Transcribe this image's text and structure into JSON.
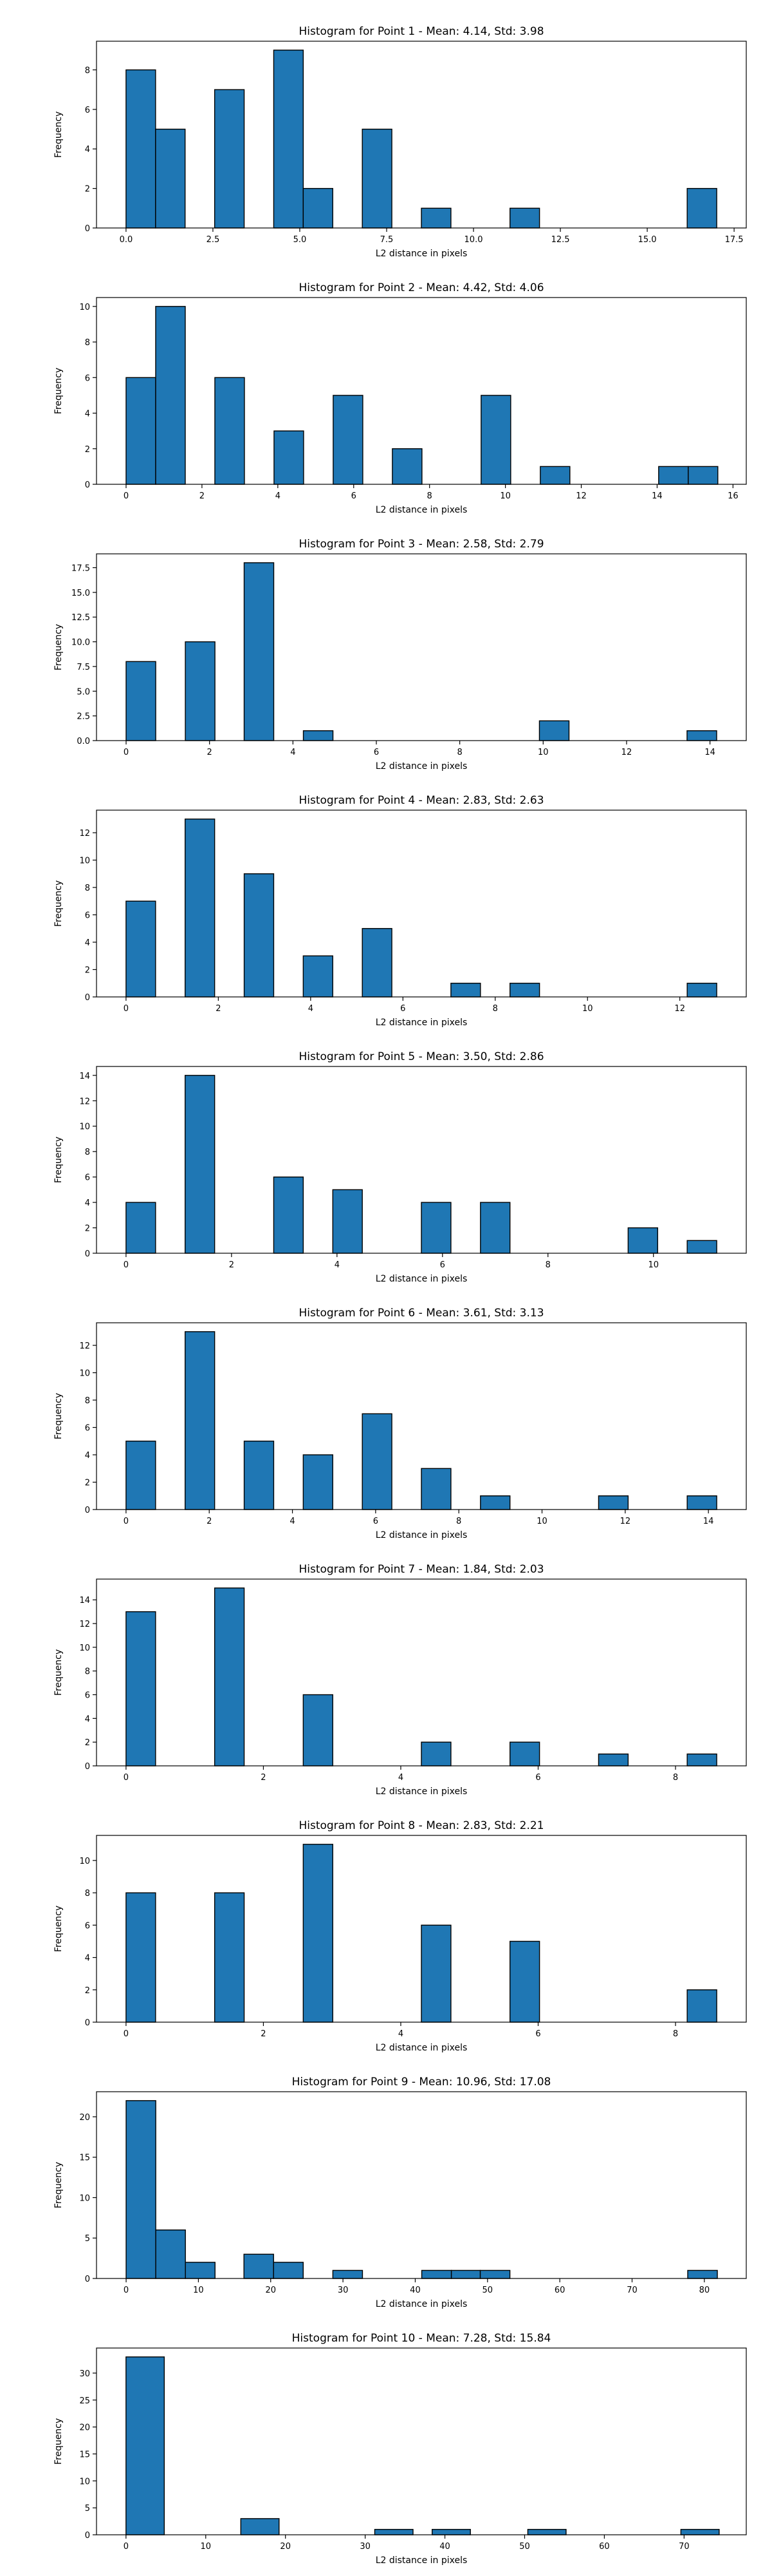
{
  "figure": {
    "bar_color": "#1f77b4",
    "edge_color": "#000000"
  },
  "chart_data": [
    {
      "type": "bar",
      "title": "Histogram for Point 1 - Mean: 4.14, Std: 3.98",
      "xlabel": "L2 distance in pixels",
      "ylabel": "Frequency",
      "xlim": [
        -0.85,
        17.85
      ],
      "ylim": [
        0,
        9.45
      ],
      "xticks": [
        0.0,
        2.5,
        5.0,
        7.5,
        10.0,
        12.5,
        15.0,
        17.5
      ],
      "xtick_labels": [
        "0.0",
        "2.5",
        "5.0",
        "7.5",
        "10.0",
        "12.5",
        "15.0",
        "17.5"
      ],
      "yticks": [
        0,
        2,
        4,
        6,
        8
      ],
      "ytick_labels": [
        "0",
        "2",
        "4",
        "6",
        "8"
      ],
      "bins": [
        {
          "x0": 0.0,
          "x1": 0.85,
          "count": 8
        },
        {
          "x0": 0.85,
          "x1": 1.7,
          "count": 5
        },
        {
          "x0": 2.55,
          "x1": 3.4,
          "count": 7
        },
        {
          "x0": 4.25,
          "x1": 5.1,
          "count": 9
        },
        {
          "x0": 5.1,
          "x1": 5.95,
          "count": 2
        },
        {
          "x0": 6.8,
          "x1": 7.65,
          "count": 5
        },
        {
          "x0": 8.5,
          "x1": 9.35,
          "count": 1
        },
        {
          "x0": 11.05,
          "x1": 11.9,
          "count": 1
        },
        {
          "x0": 16.15,
          "x1": 17.0,
          "count": 2
        }
      ]
    },
    {
      "type": "bar",
      "title": "Histogram for Point 2 - Mean: 4.42, Std: 4.06",
      "xlabel": "L2 distance in pixels",
      "ylabel": "Frequency",
      "xlim": [
        -0.78,
        16.35
      ],
      "ylim": [
        0,
        10.5
      ],
      "xticks": [
        0,
        2,
        4,
        6,
        8,
        10,
        12,
        14,
        16
      ],
      "xtick_labels": [
        "0",
        "2",
        "4",
        "6",
        "8",
        "10",
        "12",
        "14",
        "16"
      ],
      "yticks": [
        0,
        2,
        4,
        6,
        8,
        10
      ],
      "ytick_labels": [
        "0",
        "2",
        "4",
        "6",
        "8",
        "10"
      ],
      "bins": [
        {
          "x0": 0.0,
          "x1": 0.78,
          "count": 6
        },
        {
          "x0": 0.78,
          "x1": 1.56,
          "count": 10
        },
        {
          "x0": 2.34,
          "x1": 3.12,
          "count": 6
        },
        {
          "x0": 3.9,
          "x1": 4.68,
          "count": 3
        },
        {
          "x0": 5.46,
          "x1": 6.24,
          "count": 5
        },
        {
          "x0": 7.02,
          "x1": 7.8,
          "count": 2
        },
        {
          "x0": 9.36,
          "x1": 10.14,
          "count": 5
        },
        {
          "x0": 10.92,
          "x1": 11.7,
          "count": 1
        },
        {
          "x0": 14.04,
          "x1": 14.82,
          "count": 1
        },
        {
          "x0": 14.82,
          "x1": 15.6,
          "count": 1
        }
      ]
    },
    {
      "type": "bar",
      "title": "Histogram for Point 3 - Mean: 2.58, Std: 2.79",
      "xlabel": "L2 distance in pixels",
      "ylabel": "Frequency",
      "xlim": [
        -0.71,
        14.87
      ],
      "ylim": [
        0,
        18.9
      ],
      "xticks": [
        0,
        2,
        4,
        6,
        8,
        10,
        12,
        14
      ],
      "xtick_labels": [
        "0",
        "2",
        "4",
        "6",
        "8",
        "10",
        "12",
        "14"
      ],
      "yticks": [
        0.0,
        2.5,
        5.0,
        7.5,
        10.0,
        12.5,
        15.0,
        17.5
      ],
      "ytick_labels": [
        "0.0",
        "2.5",
        "5.0",
        "7.5",
        "10.0",
        "12.5",
        "15.0",
        "17.5"
      ],
      "bins": [
        {
          "x0": 0.0,
          "x1": 0.71,
          "count": 8
        },
        {
          "x0": 1.42,
          "x1": 2.13,
          "count": 10
        },
        {
          "x0": 2.83,
          "x1": 3.54,
          "count": 18
        },
        {
          "x0": 4.25,
          "x1": 4.96,
          "count": 1
        },
        {
          "x0": 9.91,
          "x1": 10.62,
          "count": 2
        },
        {
          "x0": 13.45,
          "x1": 14.16,
          "count": 1
        }
      ]
    },
    {
      "type": "bar",
      "title": "Histogram for Point 4 - Mean: 2.83, Std: 2.63",
      "xlabel": "L2 distance in pixels",
      "ylabel": "Frequency",
      "xlim": [
        -0.64,
        13.44
      ],
      "ylim": [
        0,
        13.65
      ],
      "xticks": [
        0,
        2,
        4,
        6,
        8,
        10,
        12
      ],
      "xtick_labels": [
        "0",
        "2",
        "4",
        "6",
        "8",
        "10",
        "12"
      ],
      "yticks": [
        0,
        2,
        4,
        6,
        8,
        10,
        12
      ],
      "ytick_labels": [
        "0",
        "2",
        "4",
        "6",
        "8",
        "10",
        "12"
      ],
      "bins": [
        {
          "x0": 0.0,
          "x1": 0.64,
          "count": 7
        },
        {
          "x0": 1.28,
          "x1": 1.92,
          "count": 13
        },
        {
          "x0": 2.56,
          "x1": 3.2,
          "count": 9
        },
        {
          "x0": 3.84,
          "x1": 4.48,
          "count": 3
        },
        {
          "x0": 5.12,
          "x1": 5.76,
          "count": 5
        },
        {
          "x0": 7.04,
          "x1": 7.68,
          "count": 1
        },
        {
          "x0": 8.32,
          "x1": 8.96,
          "count": 1
        },
        {
          "x0": 12.16,
          "x1": 12.8,
          "count": 1
        }
      ]
    },
    {
      "type": "bar",
      "title": "Histogram for Point 5 - Mean: 3.50, Std: 2.86",
      "xlabel": "L2 distance in pixels",
      "ylabel": "Frequency",
      "xlim": [
        -0.56,
        11.76
      ],
      "ylim": [
        0,
        14.7
      ],
      "xticks": [
        0,
        2,
        4,
        6,
        8,
        10
      ],
      "xtick_labels": [
        "0",
        "2",
        "4",
        "6",
        "8",
        "10"
      ],
      "yticks": [
        0,
        2,
        4,
        6,
        8,
        10,
        12,
        14
      ],
      "ytick_labels": [
        "0",
        "2",
        "4",
        "6",
        "8",
        "10",
        "12",
        "14"
      ],
      "bins": [
        {
          "x0": 0.0,
          "x1": 0.56,
          "count": 4
        },
        {
          "x0": 1.12,
          "x1": 1.68,
          "count": 14
        },
        {
          "x0": 2.8,
          "x1": 3.36,
          "count": 6
        },
        {
          "x0": 3.92,
          "x1": 4.48,
          "count": 5
        },
        {
          "x0": 5.6,
          "x1": 6.16,
          "count": 4
        },
        {
          "x0": 6.72,
          "x1": 7.28,
          "count": 4
        },
        {
          "x0": 9.52,
          "x1": 10.08,
          "count": 2
        },
        {
          "x0": 10.64,
          "x1": 11.2,
          "count": 1
        }
      ]
    },
    {
      "type": "bar",
      "title": "Histogram for Point 6 - Mean: 3.61, Std: 3.13",
      "xlabel": "L2 distance in pixels",
      "ylabel": "Frequency",
      "xlim": [
        -0.71,
        14.91
      ],
      "ylim": [
        0,
        13.65
      ],
      "xticks": [
        0,
        2,
        4,
        6,
        8,
        10,
        12,
        14
      ],
      "xtick_labels": [
        "0",
        "2",
        "4",
        "6",
        "8",
        "10",
        "12",
        "14"
      ],
      "yticks": [
        0,
        2,
        4,
        6,
        8,
        10,
        12
      ],
      "ytick_labels": [
        "0",
        "2",
        "4",
        "6",
        "8",
        "10",
        "12"
      ],
      "bins": [
        {
          "x0": 0.0,
          "x1": 0.71,
          "count": 5
        },
        {
          "x0": 1.42,
          "x1": 2.13,
          "count": 13
        },
        {
          "x0": 2.84,
          "x1": 3.55,
          "count": 5
        },
        {
          "x0": 4.26,
          "x1": 4.97,
          "count": 4
        },
        {
          "x0": 5.68,
          "x1": 6.39,
          "count": 7
        },
        {
          "x0": 7.1,
          "x1": 7.81,
          "count": 3
        },
        {
          "x0": 8.52,
          "x1": 9.23,
          "count": 1
        },
        {
          "x0": 11.36,
          "x1": 12.07,
          "count": 1
        },
        {
          "x0": 13.49,
          "x1": 14.2,
          "count": 1
        }
      ]
    },
    {
      "type": "bar",
      "title": "Histogram for Point 7 - Mean: 1.84, Std: 2.03",
      "xlabel": "L2 distance in pixels",
      "ylabel": "Frequency",
      "xlim": [
        -0.43,
        9.03
      ],
      "ylim": [
        0,
        15.75
      ],
      "xticks": [
        0,
        2,
        4,
        6,
        8
      ],
      "xtick_labels": [
        "0",
        "2",
        "4",
        "6",
        "8"
      ],
      "yticks": [
        0,
        2,
        4,
        6,
        8,
        10,
        12,
        14
      ],
      "ytick_labels": [
        "0",
        "2",
        "4",
        "6",
        "8",
        "10",
        "12",
        "14"
      ],
      "bins": [
        {
          "x0": 0.0,
          "x1": 0.43,
          "count": 13
        },
        {
          "x0": 1.29,
          "x1": 1.72,
          "count": 15
        },
        {
          "x0": 2.58,
          "x1": 3.01,
          "count": 6
        },
        {
          "x0": 4.3,
          "x1": 4.73,
          "count": 2
        },
        {
          "x0": 5.59,
          "x1": 6.02,
          "count": 2
        },
        {
          "x0": 6.88,
          "x1": 7.31,
          "count": 1
        },
        {
          "x0": 8.17,
          "x1": 8.6,
          "count": 1
        }
      ]
    },
    {
      "type": "bar",
      "title": "Histogram for Point 8 - Mean: 2.83, Std: 2.21",
      "xlabel": "L2 distance in pixels",
      "ylabel": "Frequency",
      "xlim": [
        -0.43,
        9.03
      ],
      "ylim": [
        0,
        11.55
      ],
      "xticks": [
        0,
        2,
        4,
        6,
        8
      ],
      "xtick_labels": [
        "0",
        "2",
        "4",
        "6",
        "8"
      ],
      "yticks": [
        0,
        2,
        4,
        6,
        8,
        10
      ],
      "ytick_labels": [
        "0",
        "2",
        "4",
        "6",
        "8",
        "10"
      ],
      "bins": [
        {
          "x0": 0.0,
          "x1": 0.43,
          "count": 8
        },
        {
          "x0": 1.29,
          "x1": 1.72,
          "count": 8
        },
        {
          "x0": 2.58,
          "x1": 3.01,
          "count": 11
        },
        {
          "x0": 4.3,
          "x1": 4.73,
          "count": 6
        },
        {
          "x0": 5.59,
          "x1": 6.02,
          "count": 5
        },
        {
          "x0": 8.17,
          "x1": 8.6,
          "count": 2
        }
      ]
    },
    {
      "type": "bar",
      "title": "Histogram for Point 9 - Mean: 10.96, Std: 17.08",
      "xlabel": "L2 distance in pixels",
      "ylabel": "Frequency",
      "xlim": [
        -4.1,
        85.8
      ],
      "ylim": [
        0,
        23.1
      ],
      "xticks": [
        0,
        10,
        20,
        30,
        40,
        50,
        60,
        70,
        80
      ],
      "xtick_labels": [
        "0",
        "10",
        "20",
        "30",
        "40",
        "50",
        "60",
        "70",
        "80"
      ],
      "yticks": [
        0,
        5,
        10,
        15,
        20
      ],
      "ytick_labels": [
        "0",
        "5",
        "10",
        "15",
        "20"
      ],
      "bins": [
        {
          "x0": 0.0,
          "x1": 4.1,
          "count": 22
        },
        {
          "x0": 4.1,
          "x1": 8.2,
          "count": 6
        },
        {
          "x0": 8.2,
          "x1": 12.3,
          "count": 2
        },
        {
          "x0": 16.3,
          "x1": 20.4,
          "count": 3
        },
        {
          "x0": 20.4,
          "x1": 24.5,
          "count": 2
        },
        {
          "x0": 28.6,
          "x1": 32.7,
          "count": 1
        },
        {
          "x0": 40.9,
          "x1": 45.0,
          "count": 1
        },
        {
          "x0": 45.0,
          "x1": 49.0,
          "count": 1
        },
        {
          "x0": 49.0,
          "x1": 53.1,
          "count": 1
        },
        {
          "x0": 77.7,
          "x1": 81.8,
          "count": 1
        }
      ]
    },
    {
      "type": "bar",
      "title": "Histogram for Point 10 - Mean: 7.28, Std: 15.84",
      "xlabel": "L2 distance in pixels",
      "ylabel": "Frequency",
      "xlim": [
        -3.7,
        77.8
      ],
      "ylim": [
        0,
        34.65
      ],
      "xticks": [
        0,
        10,
        20,
        30,
        40,
        50,
        60,
        70
      ],
      "xtick_labels": [
        "0",
        "10",
        "20",
        "30",
        "40",
        "50",
        "60",
        "70"
      ],
      "yticks": [
        0,
        5,
        10,
        15,
        20,
        25,
        30
      ],
      "ytick_labels": [
        "0",
        "5",
        "10",
        "15",
        "20",
        "25",
        "30"
      ],
      "bins": [
        {
          "x0": 0.0,
          "x1": 4.8,
          "count": 33
        },
        {
          "x0": 14.4,
          "x1": 19.2,
          "count": 3
        },
        {
          "x0": 31.2,
          "x1": 36.0,
          "count": 1
        },
        {
          "x0": 38.4,
          "x1": 43.2,
          "count": 1
        },
        {
          "x0": 50.4,
          "x1": 55.2,
          "count": 1
        },
        {
          "x0": 69.6,
          "x1": 74.4,
          "count": 1
        }
      ]
    }
  ]
}
